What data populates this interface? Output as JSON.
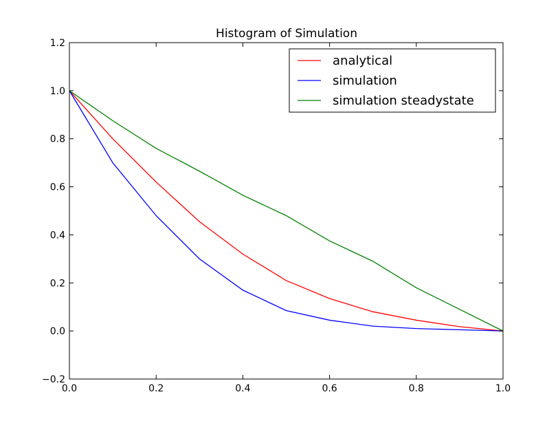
{
  "chart_data": {
    "type": "line",
    "title": "Histogram of Simulation",
    "xlabel": "",
    "ylabel": "",
    "xlim": [
      0.0,
      1.0
    ],
    "ylim": [
      -0.2,
      1.2
    ],
    "xticks": [
      "0.0",
      "0.2",
      "0.4",
      "0.6",
      "0.8",
      "1.0"
    ],
    "yticks": [
      "−0.2",
      "0.0",
      "0.2",
      "0.4",
      "0.6",
      "0.8",
      "1.0",
      "1.2"
    ],
    "grid": false,
    "legend_position": "top-right",
    "x": [
      0.0,
      0.1,
      0.2,
      0.3,
      0.4,
      0.5,
      0.6,
      0.7,
      0.8,
      0.9,
      1.0
    ],
    "series": [
      {
        "name": "analytical",
        "color": "#ff0000",
        "values": [
          1.0,
          0.8,
          0.62,
          0.455,
          0.32,
          0.21,
          0.135,
          0.08,
          0.045,
          0.018,
          0.0
        ]
      },
      {
        "name": "simulation",
        "color": "#0000ff",
        "values": [
          1.0,
          0.7,
          0.48,
          0.3,
          0.17,
          0.085,
          0.045,
          0.02,
          0.01,
          0.005,
          0.0
        ]
      },
      {
        "name": "simulation steadystate",
        "color": "#008000",
        "values": [
          1.0,
          0.875,
          0.76,
          0.665,
          0.565,
          0.48,
          0.375,
          0.29,
          0.18,
          0.09,
          0.0
        ]
      }
    ]
  }
}
